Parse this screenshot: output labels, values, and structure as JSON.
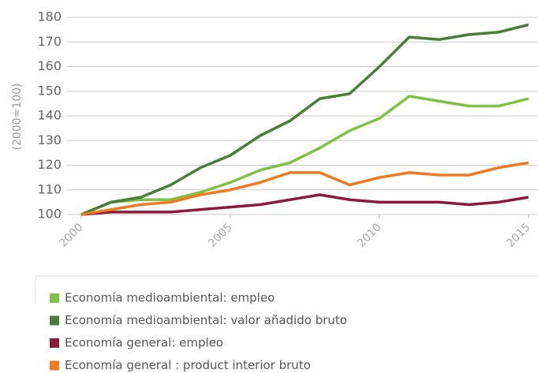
{
  "chart_data": {
    "type": "line",
    "y_label": "(2000=100)",
    "x": [
      2000,
      2001,
      2002,
      2003,
      2004,
      2005,
      2006,
      2007,
      2008,
      2009,
      2010,
      2011,
      2012,
      2013,
      2014,
      2015
    ],
    "xlim": [
      2000,
      2015
    ],
    "xticks": [
      2000,
      2005,
      2010,
      2015
    ],
    "ylim": [
      100,
      180
    ],
    "yticks": [
      100,
      110,
      120,
      130,
      140,
      150,
      160,
      170,
      180
    ],
    "grid": true,
    "legend": "bottom",
    "series": [
      {
        "name": "Economía medioambiental: empleo",
        "color": "#7dc242",
        "values": [
          100,
          105,
          106,
          106,
          109,
          113,
          118,
          121,
          127,
          134,
          139,
          148,
          146,
          144,
          144,
          147
        ]
      },
      {
        "name": "Economía medioambiental: valor añadido bruto",
        "color": "#4a7c3a",
        "values": [
          100,
          105,
          107,
          112,
          119,
          124,
          132,
          138,
          147,
          149,
          160,
          172,
          171,
          173,
          174,
          177
        ]
      },
      {
        "name": "Economía general: empleo",
        "color": "#8b1a3a",
        "values": [
          100,
          101,
          101,
          101,
          102,
          103,
          104,
          106,
          108,
          106,
          105,
          105,
          105,
          104,
          105,
          107
        ]
      },
      {
        "name": "Economía general : product interior bruto",
        "color": "#f07a22",
        "values": [
          100,
          102,
          104,
          105,
          108,
          110,
          113,
          117,
          117,
          112,
          115,
          117,
          116,
          116,
          119,
          121
        ]
      }
    ]
  }
}
